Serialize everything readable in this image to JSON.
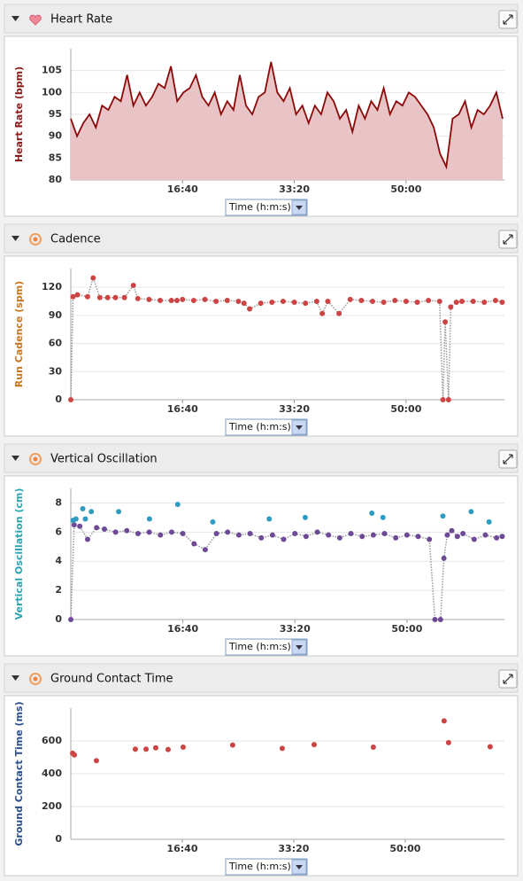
{
  "chart_data": [
    {
      "type": "area",
      "title": "Heart Rate",
      "ylabel": "Heart Rate (bpm)",
      "ylabel_color": "#8b1a1a",
      "xlabel": "Time (h:m:s)",
      "xlim": [
        0,
        3880
      ],
      "xticks": [
        {
          "value": 1000,
          "label": "16:40"
        },
        {
          "value": 2000,
          "label": "33:20"
        },
        {
          "value": 3000,
          "label": "50:00"
        }
      ],
      "ylim": [
        80,
        110
      ],
      "yticks": [
        80,
        85,
        90,
        95,
        100,
        105
      ],
      "grid": true,
      "series": [
        {
          "color": "#8b0a0a",
          "fill": "#e8c4c6",
          "x": [
            0,
            56,
            112,
            168,
            224,
            280,
            336,
            392,
            448,
            504,
            560,
            616,
            672,
            728,
            784,
            840,
            896,
            952,
            1008,
            1064,
            1120,
            1176,
            1232,
            1288,
            1344,
            1400,
            1456,
            1512,
            1568,
            1624,
            1680,
            1736,
            1792,
            1848,
            1904,
            1960,
            2016,
            2072,
            2128,
            2184,
            2240,
            2296,
            2352,
            2408,
            2464,
            2520,
            2576,
            2632,
            2688,
            2744,
            2800,
            2856,
            2912,
            2968,
            3024,
            3080,
            3136,
            3192,
            3248,
            3304,
            3360,
            3416,
            3472,
            3528,
            3584,
            3640,
            3696,
            3752,
            3808,
            3864
          ],
          "values": [
            94,
            90,
            93,
            95,
            92,
            97,
            96,
            99,
            98,
            104,
            97,
            100,
            97,
            99,
            102,
            101,
            106,
            98,
            100,
            101,
            104,
            99,
            97,
            100,
            95,
            98,
            96,
            104,
            97,
            95,
            99,
            100,
            107,
            100,
            98,
            101,
            95,
            97,
            93,
            97,
            95,
            100,
            98,
            94,
            96,
            91,
            97,
            94,
            98,
            96,
            101,
            95,
            98,
            97,
            100,
            99,
            97,
            95,
            92,
            86,
            83,
            94,
            95,
            98,
            92,
            96,
            95,
            97,
            100,
            94
          ]
        }
      ]
    },
    {
      "type": "line",
      "title": "Cadence",
      "ylabel": "Run Cadence (spm)",
      "ylabel_color": "#c8761e",
      "xlabel": "Time (h:m:s)",
      "xlim": [
        0,
        3880
      ],
      "xticks": [
        {
          "value": 1000,
          "label": "16:40"
        },
        {
          "value": 2000,
          "label": "33:20"
        },
        {
          "value": 3000,
          "label": "50:00"
        }
      ],
      "ylim": [
        0,
        140
      ],
      "yticks": [
        0,
        30,
        60,
        90,
        120
      ],
      "grid": true,
      "series": [
        {
          "color": "#cc4444",
          "line_style": "dotted",
          "markers": true,
          "x": [
            0,
            20,
            60,
            150,
            200,
            260,
            330,
            400,
            480,
            560,
            600,
            700,
            800,
            900,
            950,
            1000,
            1100,
            1200,
            1300,
            1400,
            1500,
            1550,
            1600,
            1700,
            1800,
            1900,
            2000,
            2100,
            2200,
            2250,
            2300,
            2400,
            2500,
            2600,
            2700,
            2800,
            2900,
            3000,
            3100,
            3200,
            3300,
            3330,
            3350,
            3380,
            3400,
            3450,
            3500,
            3600,
            3700,
            3800,
            3860
          ],
          "values": [
            0,
            110,
            112,
            110,
            130,
            109,
            109,
            109,
            109,
            122,
            108,
            107,
            106,
            106,
            106,
            107,
            106,
            107,
            105,
            106,
            105,
            103,
            97,
            103,
            104,
            105,
            104,
            103,
            105,
            92,
            105,
            92,
            107,
            106,
            105,
            104,
            106,
            105,
            104,
            106,
            105,
            0,
            83,
            0,
            99,
            104,
            105,
            105,
            104,
            106,
            104
          ]
        }
      ]
    },
    {
      "type": "line",
      "title": "Vertical Oscillation",
      "ylabel": "Vertical Oscillation (cm)",
      "ylabel_color": "#2aa3b3",
      "xlabel": "Time (h:m:s)",
      "xlim": [
        0,
        3870
      ],
      "xticks": [
        {
          "value": 1000,
          "label": "16:40"
        },
        {
          "value": 2000,
          "label": "33:20"
        },
        {
          "value": 3000,
          "label": "50:00"
        }
      ],
      "ylim": [
        0,
        9
      ],
      "yticks": [
        0,
        2,
        4,
        6,
        8
      ],
      "grid": true,
      "series": [
        {
          "color": "#6e4a96",
          "line_style": "dotted",
          "markers": true,
          "x": [
            0,
            30,
            80,
            150,
            230,
            300,
            400,
            500,
            600,
            700,
            800,
            900,
            1000,
            1100,
            1200,
            1300,
            1400,
            1500,
            1600,
            1700,
            1800,
            1900,
            2000,
            2100,
            2200,
            2300,
            2400,
            2500,
            2600,
            2700,
            2800,
            2900,
            3000,
            3100,
            3200,
            3250,
            3300,
            3330,
            3360,
            3400,
            3450,
            3500,
            3600,
            3700,
            3800,
            3850
          ],
          "values": [
            0,
            6.5,
            6.4,
            5.5,
            6.3,
            6.2,
            6.0,
            6.1,
            5.9,
            6.0,
            5.8,
            6.0,
            5.9,
            5.2,
            4.8,
            5.9,
            6.0,
            5.8,
            5.9,
            5.6,
            5.8,
            5.5,
            5.9,
            5.7,
            6.0,
            5.8,
            5.6,
            5.9,
            5.7,
            5.8,
            5.9,
            5.6,
            5.8,
            5.7,
            5.5,
            0,
            0,
            4.2,
            5.8,
            6.1,
            5.7,
            5.9,
            5.5,
            5.8,
            5.6,
            5.7
          ]
        },
        {
          "color": "#2e9cc0",
          "line_style": "none",
          "markers": true,
          "x": [
            20,
            46,
            107,
            130,
            183,
            427,
            702,
            954,
            1267,
            1771,
            2092,
            2687,
            2786,
            3321,
            3573,
            3733
          ],
          "values": [
            6.8,
            6.9,
            7.6,
            6.9,
            7.4,
            7.4,
            6.9,
            7.9,
            6.7,
            6.9,
            7.0,
            7.3,
            7.0,
            7.1,
            7.4,
            6.7
          ]
        }
      ]
    },
    {
      "type": "scatter",
      "title": "Ground Contact Time",
      "ylabel": "Ground Contact Time (ms)",
      "ylabel_color": "#2b4f8c",
      "xlabel": "Time (h:m:s)",
      "xlim": [
        0,
        3890
      ],
      "xticks": [
        {
          "value": 1000,
          "label": "16:40"
        },
        {
          "value": 2000,
          "label": "33:20"
        },
        {
          "value": 3000,
          "label": "50:00"
        }
      ],
      "ylim": [
        0,
        800
      ],
      "yticks": [
        0,
        200,
        400,
        600
      ],
      "grid": true,
      "series": [
        {
          "color": "#cc4444",
          "markers": true,
          "x": [
            16,
            32,
            230,
            579,
            675,
            762,
            873,
            1008,
            1452,
            1897,
            2183,
            2714,
            3349,
            3389,
            3762
          ],
          "values": [
            525,
            515,
            480,
            550,
            550,
            558,
            548,
            562,
            575,
            555,
            578,
            562,
            722,
            590,
            565
          ]
        }
      ]
    }
  ]
}
